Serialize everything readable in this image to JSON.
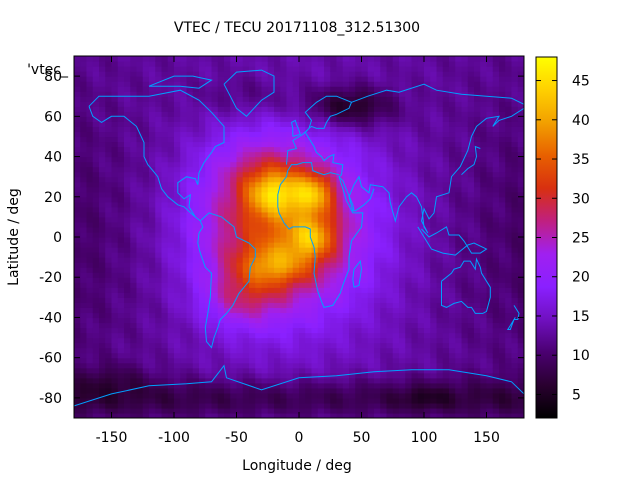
{
  "chart_data": {
    "type": "heatmap",
    "title": "VTEC / TECU 20171108_312.51300",
    "xlabel": "Longitude / deg",
    "ylabel": "Latitude / deg",
    "key_label": "'vtec_",
    "xlim": [
      -180,
      180
    ],
    "ylim": [
      -90,
      90
    ],
    "xticks": [
      -150,
      -100,
      -50,
      0,
      50,
      100,
      150
    ],
    "yticks": [
      -80,
      -60,
      -40,
      -20,
      0,
      20,
      40,
      60,
      80
    ],
    "colorbar": {
      "range": [
        2,
        48
      ],
      "ticks": [
        5,
        10,
        15,
        20,
        25,
        30,
        35,
        40,
        45
      ],
      "palette": [
        "#000000",
        "#2a0030",
        "#4a0070",
        "#7010c0",
        "#8a20ff",
        "#a020f0",
        "#c02080",
        "#d83010",
        "#e86000",
        "#f2a000",
        "#ffd000",
        "#ffff00"
      ]
    },
    "coastline_color": "#00a0ff",
    "grid": false,
    "features": [
      {
        "type": "peak",
        "lon": -20,
        "lat": 20,
        "value": 45
      },
      {
        "type": "peak",
        "lon": 10,
        "lat": 20,
        "value": 44
      },
      {
        "type": "peak",
        "lon": 10,
        "lat": 0,
        "value": 42
      },
      {
        "type": "peak",
        "lon": -20,
        "lat": -15,
        "value": 40
      },
      {
        "type": "low",
        "lon": 40,
        "lat": 65,
        "value": 4
      },
      {
        "type": "low",
        "lon": 100,
        "lat": -80,
        "value": 4
      },
      {
        "type": "low",
        "lon": -150,
        "lat": -70,
        "value": 6
      }
    ]
  }
}
